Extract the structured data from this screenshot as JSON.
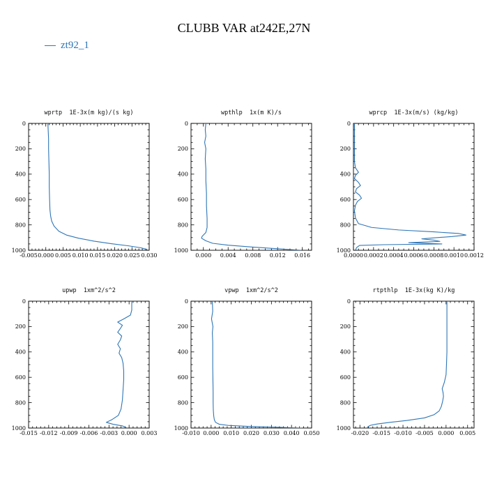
{
  "title": "CLUBB VAR at242E,27N",
  "legend": {
    "label": "zt92_1",
    "color": "#2e75b6"
  },
  "line_color": "#2e75b6",
  "chart_data": [
    {
      "id": "wprtp",
      "type": "line",
      "title": "wprtp  1E-3x(m kg)/(s kg)",
      "xlim": [
        -0.005,
        0.03
      ],
      "xticks": [
        -0.005,
        0.0,
        0.005,
        0.01,
        0.015,
        0.02,
        0.025,
        0.03
      ],
      "xtick_decimals": 3,
      "xminor": 0.001,
      "ylim": [
        0,
        1000
      ],
      "yticks": [
        0,
        200,
        400,
        600,
        800,
        1000
      ],
      "yminor": 50,
      "y_axis_inverted": true,
      "series": [
        {
          "name": "zt92_1",
          "points": [
            [
              0.0006,
              0
            ],
            [
              0.0007,
              60
            ],
            [
              0.0008,
              120
            ],
            [
              0.0008,
              200
            ],
            [
              0.0009,
              300
            ],
            [
              0.001,
              400
            ],
            [
              0.001,
              500
            ],
            [
              0.0011,
              600
            ],
            [
              0.0012,
              680
            ],
            [
              0.0014,
              730
            ],
            [
              0.0017,
              770
            ],
            [
              0.0024,
              810
            ],
            [
              0.0038,
              850
            ],
            [
              0.006,
              880
            ],
            [
              0.0095,
              905
            ],
            [
              0.014,
              928
            ],
            [
              0.019,
              948
            ],
            [
              0.024,
              965
            ],
            [
              0.0275,
              980
            ],
            [
              0.0292,
              992
            ],
            [
              0.0296,
              1000
            ]
          ]
        }
      ]
    },
    {
      "id": "wpthlp",
      "type": "line",
      "title": "wpthlp  1x(m K)/s",
      "xlim": [
        -0.002,
        0.0175
      ],
      "xticks": [
        0.0,
        0.004,
        0.008,
        0.012,
        0.016
      ],
      "xtick_decimals": 3,
      "xminor": 0.001,
      "ylim": [
        0,
        1000
      ],
      "yticks": [
        0,
        200,
        400,
        600,
        800,
        1000
      ],
      "yminor": 50,
      "y_axis_inverted": true,
      "series": [
        {
          "name": "zt92_1",
          "points": [
            [
              0.0004,
              0
            ],
            [
              0.0003,
              50
            ],
            [
              0.0004,
              100
            ],
            [
              0.0002,
              150
            ],
            [
              0.0004,
              200
            ],
            [
              0.0003,
              280
            ],
            [
              0.0004,
              360
            ],
            [
              0.0004,
              450
            ],
            [
              0.0005,
              550
            ],
            [
              0.0005,
              650
            ],
            [
              0.0006,
              750
            ],
            [
              0.0006,
              820
            ],
            [
              0.0004,
              860
            ],
            [
              -0.0002,
              890
            ],
            [
              -0.0003,
              905
            ],
            [
              0.0004,
              925
            ],
            [
              0.0015,
              945
            ],
            [
              0.004,
              960
            ],
            [
              0.008,
              975
            ],
            [
              0.012,
              988
            ],
            [
              0.0158,
              1000
            ]
          ]
        }
      ]
    },
    {
      "id": "wprcp",
      "type": "line",
      "title": "wprcp  1E-3x(m/s) (kg/kg)",
      "xlim": [
        0.0,
        0.0012
      ],
      "xticks": [
        0.0,
        0.0002,
        0.0004,
        0.0006,
        0.0008,
        0.001,
        0.0012
      ],
      "xtick_decimals": 4,
      "xminor": 5e-05,
      "ylim": [
        0,
        1000
      ],
      "yticks": [
        0,
        200,
        400,
        600,
        800,
        1000
      ],
      "yminor": 50,
      "y_axis_inverted": true,
      "series": [
        {
          "name": "zt92_1",
          "points": [
            [
              1e-05,
              0
            ],
            [
              1e-05,
              150
            ],
            [
              1e-05,
              300
            ],
            [
              2e-05,
              350
            ],
            [
              5e-05,
              385
            ],
            [
              2e-05,
              410
            ],
            [
              1e-05,
              435
            ],
            [
              5e-05,
              465
            ],
            [
              7e-05,
              490
            ],
            [
              3e-05,
              515
            ],
            [
              2e-05,
              540
            ],
            [
              6e-05,
              565
            ],
            [
              8e-05,
              590
            ],
            [
              4e-05,
              615
            ],
            [
              2e-05,
              645
            ],
            [
              1e-05,
              690
            ],
            [
              2e-05,
              745
            ],
            [
              5e-05,
              790
            ],
            [
              0.00018,
              820
            ],
            [
              0.00045,
              840
            ],
            [
              0.0008,
              855
            ],
            [
              0.00105,
              868
            ],
            [
              0.00112,
              880
            ],
            [
              0.00098,
              892
            ],
            [
              0.0008,
              902
            ],
            [
              0.00068,
              910
            ],
            [
              0.0008,
              920
            ],
            [
              0.00086,
              930
            ],
            [
              0.00055,
              940
            ],
            [
              0.00088,
              950
            ],
            [
              0.0003,
              956
            ],
            [
              6e-05,
              962
            ],
            [
              3e-05,
              980
            ],
            [
              2e-05,
              1000
            ]
          ]
        }
      ]
    },
    {
      "id": "upwp",
      "type": "line",
      "title": "upwp  1xm^2/s^2",
      "xlim": [
        -0.015,
        0.003
      ],
      "xticks": [
        -0.015,
        -0.012,
        -0.009,
        -0.006,
        -0.003,
        0.0,
        0.003
      ],
      "xtick_decimals": 3,
      "xminor": 0.0006,
      "ylim": [
        0,
        1000
      ],
      "yticks": [
        0,
        200,
        400,
        600,
        800,
        1000
      ],
      "yminor": 50,
      "y_axis_inverted": true,
      "series": [
        {
          "name": "zt92_1",
          "points": [
            [
              0.0004,
              0
            ],
            [
              0.0004,
              70
            ],
            [
              0.0002,
              110
            ],
            [
              -0.0008,
              140
            ],
            [
              -0.0017,
              165
            ],
            [
              -0.001,
              190
            ],
            [
              -0.0013,
              215
            ],
            [
              -0.0017,
              245
            ],
            [
              -0.0011,
              275
            ],
            [
              -0.0013,
              305
            ],
            [
              -0.0017,
              340
            ],
            [
              -0.0013,
              375
            ],
            [
              -0.0015,
              410
            ],
            [
              -0.0011,
              445
            ],
            [
              -0.0009,
              490
            ],
            [
              -0.0008,
              550
            ],
            [
              -0.0008,
              620
            ],
            [
              -0.0009,
              700
            ],
            [
              -0.001,
              780
            ],
            [
              -0.0012,
              850
            ],
            [
              -0.0016,
              900
            ],
            [
              -0.0026,
              935
            ],
            [
              -0.0034,
              955
            ],
            [
              -0.0024,
              970
            ],
            [
              -0.001,
              983
            ],
            [
              -0.0003,
              1000
            ]
          ]
        }
      ]
    },
    {
      "id": "vpwp",
      "type": "line",
      "title": "vpwp  1xm^2/s^2",
      "xlim": [
        -0.01,
        0.05
      ],
      "xticks": [
        -0.01,
        0.0,
        0.01,
        0.02,
        0.03,
        0.04,
        0.05
      ],
      "xtick_decimals": 3,
      "xminor": 0.002,
      "ylim": [
        0,
        1000
      ],
      "yticks": [
        0,
        200,
        400,
        600,
        800,
        1000
      ],
      "yminor": 50,
      "y_axis_inverted": true,
      "series": [
        {
          "name": "zt92_1",
          "points": [
            [
              0.0006,
              0
            ],
            [
              0.0008,
              80
            ],
            [
              0.0002,
              140
            ],
            [
              0.0009,
              200
            ],
            [
              0.0006,
              250
            ],
            [
              0.0008,
              320
            ],
            [
              0.0008,
              420
            ],
            [
              0.0008,
              520
            ],
            [
              0.0009,
              620
            ],
            [
              0.001,
              720
            ],
            [
              0.001,
              800
            ],
            [
              0.0011,
              860
            ],
            [
              0.0013,
              905
            ],
            [
              0.0016,
              935
            ],
            [
              0.0022,
              955
            ],
            [
              0.004,
              970
            ],
            [
              0.009,
              980
            ],
            [
              0.02,
              988
            ],
            [
              0.034,
              994
            ],
            [
              0.045,
              1000
            ]
          ]
        }
      ]
    },
    {
      "id": "rtpthlp",
      "type": "line",
      "title": "rtpthlp  1E-3x(kg K)/kg",
      "xlim": [
        -0.0215,
        0.0065
      ],
      "xticks": [
        -0.02,
        -0.015,
        -0.01,
        -0.005,
        0.0,
        0.005
      ],
      "xtick_decimals": 3,
      "xminor": 0.001,
      "ylim": [
        0,
        1000
      ],
      "yticks": [
        0,
        200,
        400,
        600,
        800,
        1000
      ],
      "yminor": 50,
      "y_axis_inverted": true,
      "series": [
        {
          "name": "zt92_1",
          "points": [
            [
              0.0002,
              0
            ],
            [
              0.0002,
              100
            ],
            [
              0.0002,
              200
            ],
            [
              0.0002,
              300
            ],
            [
              0.0002,
              400
            ],
            [
              0.0001,
              500
            ],
            [
              0.0,
              580
            ],
            [
              -0.0004,
              640
            ],
            [
              -0.0009,
              690
            ],
            [
              -0.0007,
              720
            ],
            [
              -0.0006,
              750
            ],
            [
              -0.0008,
              790
            ],
            [
              -0.0011,
              830
            ],
            [
              -0.0016,
              865
            ],
            [
              -0.0028,
              895
            ],
            [
              -0.005,
              920
            ],
            [
              -0.009,
              940
            ],
            [
              -0.013,
              955
            ],
            [
              -0.016,
              968
            ],
            [
              -0.0175,
              978
            ],
            [
              -0.0181,
              988
            ],
            [
              -0.0183,
              1000
            ]
          ]
        }
      ]
    }
  ]
}
